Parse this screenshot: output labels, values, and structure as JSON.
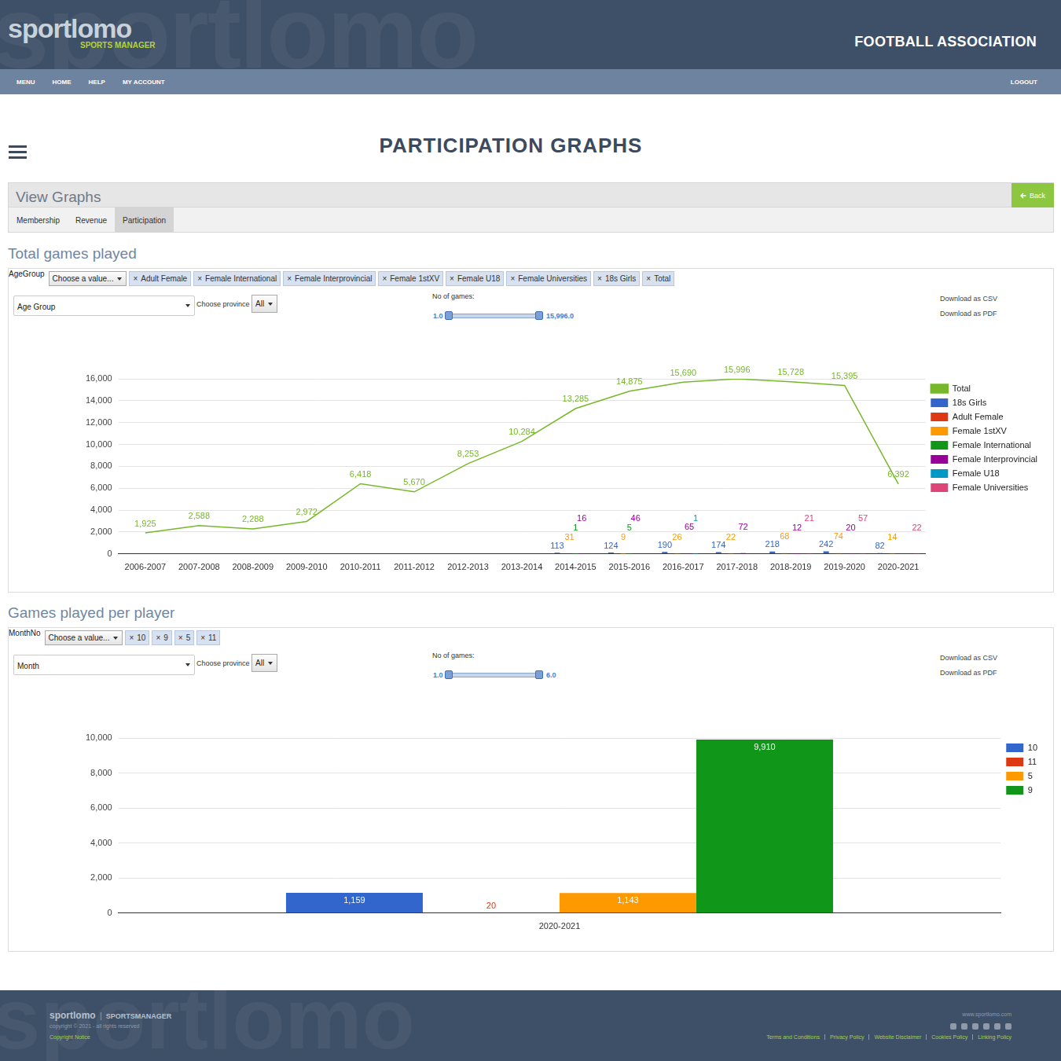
{
  "header": {
    "logo": "sportlomo",
    "logo_sub": "SPORTS MANAGER",
    "org": "FOOTBALL ASSOCIATION",
    "watermark": "sportlomo"
  },
  "nav": {
    "items": [
      "MENU",
      "HOME",
      "HELP",
      "MY ACCOUNT"
    ],
    "logout": "LOGOUT"
  },
  "page_title": "PARTICIPATION GRAPHS",
  "panel": {
    "title": "View Graphs",
    "back": "Back",
    "tabs": [
      "Membership",
      "Revenue",
      "Participation"
    ],
    "active_tab": "Participation"
  },
  "chip_remove": "×",
  "sections": [
    {
      "filter_label": "AgeGroup",
      "filter_placeholder": "Choose a value...",
      "chips": [
        "Adult Female",
        "Female International",
        "Female Interprovincial",
        "Female 1stXV",
        "Female U18",
        "Female Universities",
        "18s Girls",
        "Total"
      ],
      "dimension": "Age Group",
      "province_label": "Choose province",
      "province": "All",
      "slider_label": "No of games:",
      "slider_min": "1.0",
      "slider_max": "15,996.0",
      "downloads": [
        "Download as CSV",
        "Download as PDF"
      ]
    },
    {
      "filter_label": "MonthNo",
      "filter_placeholder": "Choose a value...",
      "chips": [
        "10",
        "9",
        "5",
        "11"
      ],
      "dimension": "Month",
      "province_label": "Choose province",
      "province": "All",
      "slider_label": "No of games:",
      "slider_min": "1.0",
      "slider_max": "6.0",
      "downloads": [
        "Download as CSV",
        "Download as PDF"
      ]
    }
  ],
  "chart_data": [
    {
      "type": "bar",
      "title": "Total games played",
      "categories": [
        "2006-2007",
        "2007-2008",
        "2008-2009",
        "2009-2010",
        "2010-2011",
        "2011-2012",
        "2012-2013",
        "2013-2014",
        "2014-2015",
        "2015-2016",
        "2016-2017",
        "2017-2018",
        "2018-2019",
        "2019-2020",
        "2020-2021"
      ],
      "series": [
        {
          "name": "18s Girls",
          "color": "#3366cc",
          "values": [
            null,
            null,
            null,
            null,
            null,
            null,
            null,
            null,
            113,
            124,
            190,
            174,
            218,
            242,
            82
          ]
        },
        {
          "name": "Adult Female",
          "color": "#dc3912",
          "values": [
            null,
            null,
            null,
            null,
            null,
            null,
            null,
            null,
            null,
            null,
            null,
            null,
            null,
            null,
            null
          ]
        },
        {
          "name": "Female 1stXV",
          "color": "#ff9900",
          "values": [
            null,
            null,
            null,
            null,
            null,
            null,
            null,
            null,
            31,
            9,
            26,
            22,
            68,
            74,
            14
          ]
        },
        {
          "name": "Female International",
          "color": "#109618",
          "values": [
            null,
            null,
            null,
            null,
            null,
            null,
            null,
            null,
            1,
            5,
            null,
            null,
            null,
            null,
            null
          ]
        },
        {
          "name": "Female Interprovincial",
          "color": "#990099",
          "values": [
            null,
            null,
            null,
            null,
            null,
            null,
            null,
            null,
            16,
            46,
            65,
            72,
            12,
            20,
            null
          ]
        },
        {
          "name": "Female U18",
          "color": "#0099c6",
          "values": [
            null,
            null,
            null,
            null,
            null,
            null,
            null,
            null,
            null,
            null,
            1,
            null,
            null,
            null,
            null
          ]
        },
        {
          "name": "Female Universities",
          "color": "#dd4477",
          "values": [
            null,
            null,
            null,
            null,
            null,
            null,
            null,
            null,
            null,
            null,
            null,
            null,
            21,
            57,
            22
          ]
        },
        {
          "name": "Total",
          "type": "line",
          "color": "#76b82a",
          "values": [
            1925,
            2588,
            2288,
            2972,
            6418,
            5670,
            8253,
            10284,
            13285,
            14875,
            15690,
            15996,
            15728,
            15395,
            6392
          ],
          "value_labels": [
            "1,925",
            "2,588",
            "2,288",
            "2,972",
            "6,418",
            "5,670",
            "8,253",
            "10,284",
            "13,285",
            "14,875",
            "15,690",
            "15,996",
            "15,728",
            "15,395",
            "6,392"
          ]
        }
      ],
      "ylim": [
        0,
        16000
      ],
      "yticks": [
        0,
        {
          "value": 2000,
          "label": "2,000"
        },
        {
          "value": 4000,
          "label": "4,000"
        },
        {
          "value": 6000,
          "label": "6,000"
        },
        {
          "value": 8000,
          "label": "8,000"
        },
        {
          "value": 10000,
          "label": "10,000"
        },
        {
          "value": 12000,
          "label": "12,000"
        },
        {
          "value": 14000,
          "label": "14,000"
        },
        {
          "value": 16000,
          "label": "16,000"
        }
      ],
      "grid": true,
      "legend": "right",
      "data_labels": true
    },
    {
      "type": "bar",
      "title": "Games played per player",
      "categories": [
        "2020-2021"
      ],
      "series": [
        {
          "name": "10",
          "color": "#3366cc",
          "values": [
            1159
          ],
          "value_labels": [
            "1,159"
          ]
        },
        {
          "name": "11",
          "color": "#dc3912",
          "values": [
            20
          ]
        },
        {
          "name": "5",
          "color": "#ff9900",
          "values": [
            1143
          ],
          "value_labels": [
            "1,143"
          ]
        },
        {
          "name": "9",
          "color": "#109618",
          "values": [
            9910
          ],
          "value_labels": [
            "9,910"
          ]
        }
      ],
      "ylim": [
        0,
        10000
      ],
      "yticks": [
        0,
        {
          "value": 2000,
          "label": "2,000"
        },
        {
          "value": 4000,
          "label": "4,000"
        },
        {
          "value": 6000,
          "label": "6,000"
        },
        {
          "value": 8000,
          "label": "8,000"
        },
        {
          "value": 10000,
          "label": "10,000"
        }
      ],
      "grid": true,
      "legend": "right",
      "data_labels": true
    }
  ],
  "footer": {
    "brand": "sportlomo",
    "product": "SPORTSMANAGER",
    "copyright": "copyright © 2021 - all rights reserved",
    "notice": "Copyright Notice",
    "site": "www.sportlomo.com",
    "links": [
      "Terms and Conditions",
      "Privacy Policy",
      "Website Disclaimer",
      "Cookies Policy",
      "Linking Policy"
    ],
    "watermark": "sportlomo"
  }
}
